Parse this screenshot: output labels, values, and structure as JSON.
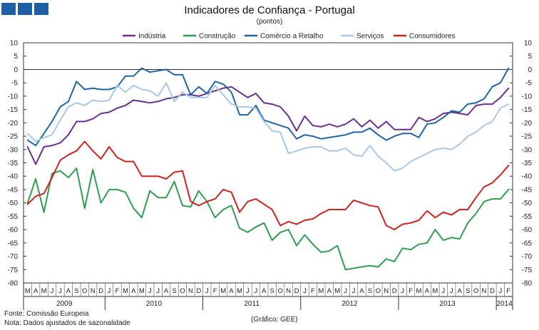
{
  "chart_data": {
    "type": "line",
    "title": "Indicadores de Confiança - Portugal",
    "subtitle": "(pontos)",
    "ylim": [
      -80,
      10
    ],
    "yticks": [
      10,
      5,
      0,
      -5,
      -10,
      -15,
      -20,
      -25,
      -30,
      -35,
      -40,
      -45,
      -50,
      -55,
      -60,
      -65,
      -70,
      -75,
      -80
    ],
    "legend_position": "top",
    "month_labels": [
      "M",
      "A",
      "M",
      "J",
      "J",
      "A",
      "S",
      "O",
      "N",
      "D",
      "J",
      "F",
      "M",
      "A",
      "M",
      "J",
      "J",
      "A",
      "S",
      "O",
      "N",
      "D",
      "J",
      "F",
      "M",
      "A",
      "M",
      "J",
      "J",
      "A",
      "S",
      "O",
      "N",
      "D",
      "J",
      "F",
      "M",
      "A",
      "M",
      "J",
      "J",
      "A",
      "S",
      "O",
      "N",
      "D",
      "J",
      "F",
      "M",
      "A",
      "M",
      "J",
      "J",
      "A",
      "S",
      "O",
      "N",
      "D",
      "J",
      "F"
    ],
    "year_labels": [
      {
        "label": "2009",
        "start": 0,
        "end": 9
      },
      {
        "label": "2010",
        "start": 10,
        "end": 21
      },
      {
        "label": "2011",
        "start": 22,
        "end": 33
      },
      {
        "label": "2012",
        "start": 34,
        "end": 45
      },
      {
        "label": "2013",
        "start": 46,
        "end": 57
      },
      {
        "label": "2014",
        "start": 58,
        "end": 59
      }
    ],
    "series": [
      {
        "name": "Indústria",
        "color": "#6a2f8f",
        "values": [
          -29,
          -35.5,
          -29,
          -28.5,
          -27.5,
          -24.5,
          -19.5,
          -19.5,
          -18.5,
          -16.5,
          -16,
          -14.5,
          -13.5,
          -11.5,
          -12,
          -12.5,
          -12,
          -11,
          -10.5,
          -9.5,
          -9.5,
          -10,
          -9,
          -8,
          -7,
          -6.5,
          -8.5,
          -10.5,
          -9,
          -12.5,
          -13,
          -14,
          -17.5,
          -23,
          -17.5,
          -21,
          -21.5,
          -20.5,
          -21.5,
          -20.5,
          -18.5,
          -21.5,
          -19,
          -22,
          -19.5,
          -22.5,
          -22.5,
          -22.5,
          -18,
          -19.5,
          -18.5,
          -16.5,
          -16,
          -16.5,
          -17,
          -13.5,
          -13,
          -13,
          -10.5,
          -7
        ]
      },
      {
        "name": "Construção",
        "color": "#2e9e4f",
        "values": [
          -50,
          -41,
          -53.5,
          -39,
          -38,
          -40.5,
          -37,
          -52,
          -37.5,
          -50,
          -45,
          -45,
          -46,
          -52,
          -55.5,
          -45.5,
          -48,
          -48,
          -42,
          -51,
          -51.5,
          -45.5,
          -49.5,
          -55.5,
          -52.5,
          -51,
          -59.5,
          -61,
          -59,
          -57.5,
          -64,
          -61,
          -60,
          -66,
          -62,
          -65.5,
          -68.5,
          -68,
          -66,
          -75,
          -74.5,
          -74,
          -73.5,
          -74,
          -71,
          -72,
          -67,
          -67.5,
          -65.5,
          -65,
          -60,
          -64,
          -63,
          -63.5,
          -57.5,
          -54,
          -49.5,
          -48.5,
          -48.5,
          -45
        ]
      },
      {
        "name": "Comércio a Retalho",
        "color": "#1f64a6",
        "values": [
          -26.5,
          -28.5,
          -24,
          -19.5,
          -14,
          -12,
          -4.5,
          -7.5,
          -7,
          -7.5,
          -7.5,
          -6.5,
          -2.5,
          -2.5,
          0.5,
          -1,
          -0.5,
          0,
          -2,
          -2,
          -9.5,
          -6.5,
          -9,
          -4.5,
          -5.5,
          -8.5,
          -17,
          -17,
          -13.5,
          -19,
          -20,
          -21,
          -22,
          -26,
          -24.5,
          -25,
          -26,
          -25.5,
          -25,
          -24.5,
          -23.5,
          -23.5,
          -22,
          -24.5,
          -26.5,
          -25,
          -24,
          -24,
          -25.5,
          -20.5,
          -20,
          -18,
          -15.5,
          -16,
          -13,
          -12.5,
          -11,
          -6.5,
          -5,
          0.5
        ]
      },
      {
        "name": "Serviços",
        "color": "#a7c9e8",
        "values": [
          -24,
          -27,
          -25.5,
          -24.5,
          -19,
          -14,
          -12.5,
          -13.5,
          -11.5,
          -12,
          -11.5,
          -6,
          -8.5,
          -6,
          -7.5,
          -8,
          -10,
          -5,
          -12,
          -8.5,
          -10.5,
          -10.5,
          -10.5,
          -6,
          -9.5,
          -13,
          -14,
          -14,
          -14.5,
          -19.5,
          -23,
          -23.5,
          -31.5,
          -30.5,
          -29.5,
          -29,
          -29,
          -30.5,
          -30.5,
          -29.5,
          -32,
          -32.5,
          -28.5,
          -32.5,
          -35,
          -38,
          -37,
          -34.5,
          -33,
          -31.5,
          -30,
          -29.5,
          -30,
          -28,
          -25,
          -23.5,
          -21,
          -19.5,
          -14.5,
          -13
        ]
      },
      {
        "name": "Consumidores",
        "color": "#d4201f",
        "values": [
          -50.5,
          -47.5,
          -46.5,
          -40.5,
          -34,
          -32,
          -30.5,
          -27,
          -30.5,
          -33.5,
          -29,
          -33,
          -34.5,
          -34.5,
          -40,
          -40,
          -40,
          -41,
          -38.5,
          -38,
          -49.5,
          -51,
          -49.5,
          -48.5,
          -45,
          -46,
          -53.5,
          -49.5,
          -48.5,
          -50.5,
          -52.5,
          -58.5,
          -57,
          -58,
          -56.5,
          -56,
          -54,
          -52.5,
          -52.5,
          -52.5,
          -49,
          -50,
          -51,
          -51.5,
          -58.5,
          -60,
          -58,
          -57.5,
          -56.5,
          -53,
          -55.5,
          -53.5,
          -54.5,
          -52.5,
          -52.5,
          -48,
          -44,
          -42.5,
          -39.5,
          -36
        ]
      }
    ]
  },
  "header": {
    "title": "Indicadores de Confiança - Portugal",
    "subtitle": "(pontos)"
  },
  "footer": {
    "source": "Fonte: Comissão Europeia",
    "note": "Nota: Dados ajustados de sazonalidade",
    "credit": "(Gráfico:  GEE)"
  }
}
